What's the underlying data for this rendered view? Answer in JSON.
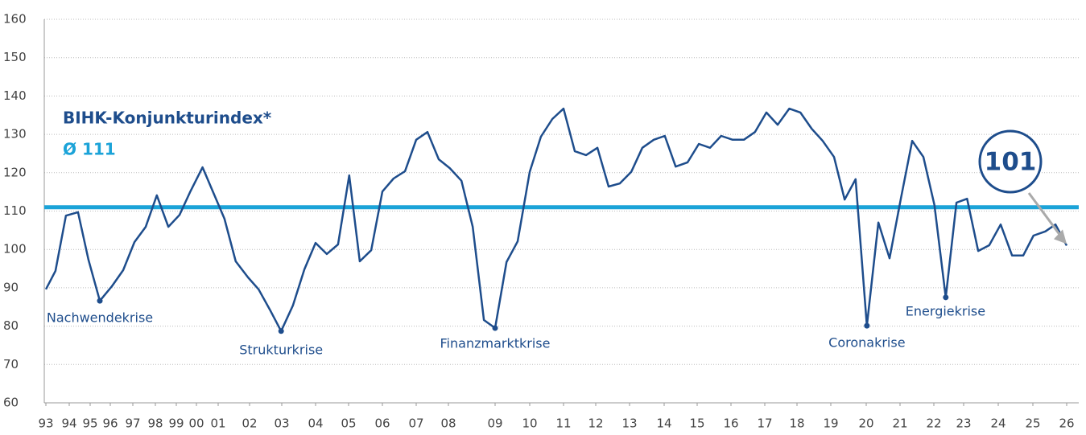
{
  "chart_data": {
    "type": "line",
    "title": "BIHK-Konjunkturindex*",
    "mean": {
      "value": 111,
      "label": "Ø 111",
      "color": "#1ba3d8"
    },
    "callout": {
      "value": 101,
      "label": "101"
    },
    "series": [
      {
        "name": "BIHK-Konjunkturindex*",
        "color": "#1e4d8c",
        "x": [
          1993.0,
          1993.41,
          1993.86,
          1994.42,
          1994.92,
          1995.48,
          1996.07,
          1996.57,
          1997.07,
          1997.57,
          1998.07,
          1998.62,
          1999.16,
          1999.68,
          2000.28,
          2000.74,
          2001.2,
          2001.56,
          2001.95,
          2002.28,
          2002.63,
          2002.98,
          2003.33,
          2003.67,
          2004.0,
          2004.34,
          2004.68,
          2005.02,
          2005.33,
          2005.67,
          2006.0,
          2006.33,
          2006.67,
          2007.0,
          2007.35,
          2007.7,
          2008.03,
          2008.28,
          2008.52,
          2008.76,
          2009.0,
          2009.33,
          2009.65,
          2010.0,
          2010.33,
          2010.67,
          2011.0,
          2011.35,
          2011.7,
          2012.05,
          2012.38,
          2012.71,
          2013.05,
          2013.37,
          2013.7,
          2014.02,
          2014.35,
          2014.71,
          2015.05,
          2015.38,
          2015.71,
          2016.05,
          2016.38,
          2016.71,
          2017.05,
          2017.4,
          2017.76,
          2018.1,
          2018.43,
          2018.76,
          2019.09,
          2019.39,
          2019.7,
          2020.02,
          2020.36,
          2020.69,
          2021.02,
          2021.36,
          2021.69,
          2022.02,
          2022.4,
          2022.76,
          2023.1,
          2023.42,
          2023.74,
          2024.07,
          2024.4,
          2024.72,
          2025.02,
          2025.37,
          2025.67,
          2026.0
        ],
        "values": [
          89.6,
          94.4,
          108.8,
          109.7,
          97.3,
          86.6,
          90.4,
          94.6,
          101.9,
          105.9,
          114.1,
          105.9,
          109.0,
          114.9,
          121.4,
          115.3,
          108.0,
          96.9,
          92.7,
          89.6,
          84.3,
          78.7,
          85.4,
          94.8,
          101.7,
          98.8,
          101.3,
          119.3,
          96.9,
          99.8,
          115.1,
          118.5,
          120.4,
          128.6,
          130.6,
          123.5,
          121.2,
          117.9,
          105.9,
          81.6,
          79.5,
          96.7,
          102.1,
          120.2,
          129.4,
          134.0,
          136.7,
          125.6,
          124.6,
          126.5,
          116.4,
          117.2,
          120.2,
          126.5,
          128.6,
          129.6,
          121.6,
          122.7,
          127.5,
          126.5,
          129.6,
          128.6,
          128.6,
          130.6,
          135.7,
          132.5,
          136.7,
          135.7,
          131.5,
          128.3,
          124.1,
          113.0,
          118.3,
          80.1,
          107.0,
          97.7,
          113.0,
          128.3,
          124.1,
          111.6,
          87.5,
          112.2,
          113.2,
          99.6,
          101.1,
          106.5,
          98.4,
          98.4,
          103.6,
          104.7,
          106.5,
          101
        ]
      }
    ],
    "annotations": [
      {
        "text": "Nachwendekrise",
        "x": 1995.48,
        "y": 86.6
      },
      {
        "text": "Strukturkrise",
        "x": 2002.98,
        "y": 78.7
      },
      {
        "text": "Finanzmarktkrise",
        "x": 2009.0,
        "y": 79.5
      },
      {
        "text": "Coronakrise",
        "x": 2020.02,
        "y": 80.1
      },
      {
        "text": "Energiekrise",
        "x": 2022.4,
        "y": 87.5
      }
    ],
    "ylim": [
      60,
      160
    ],
    "yticks": [
      60,
      70,
      80,
      90,
      100,
      110,
      120,
      130,
      140,
      150,
      160
    ],
    "xlim": [
      1993,
      2026
    ],
    "xticks": [
      {
        "value": 1993,
        "label": "93"
      },
      {
        "value": 1994,
        "label": "94"
      },
      {
        "value": 1995,
        "label": "95"
      },
      {
        "value": 1996,
        "label": "96"
      },
      {
        "value": 1997,
        "label": "97"
      },
      {
        "value": 1998,
        "label": "98"
      },
      {
        "value": 1999,
        "label": "99"
      },
      {
        "value": 2000,
        "label": "00"
      },
      {
        "value": 2001,
        "label": "01"
      },
      {
        "value": 2002,
        "label": "02"
      },
      {
        "value": 2003,
        "label": "03"
      },
      {
        "value": 2004,
        "label": "04"
      },
      {
        "value": 2005,
        "label": "05"
      },
      {
        "value": 2006,
        "label": "06"
      },
      {
        "value": 2007,
        "label": "07"
      },
      {
        "value": 2008,
        "label": "08"
      },
      {
        "value": 2009,
        "label": "09"
      },
      {
        "value": 2010,
        "label": "10"
      },
      {
        "value": 2011,
        "label": "11"
      },
      {
        "value": 2012,
        "label": "12"
      },
      {
        "value": 2013,
        "label": "13"
      },
      {
        "value": 2014,
        "label": "14"
      },
      {
        "value": 2015,
        "label": "15"
      },
      {
        "value": 2016,
        "label": "16"
      },
      {
        "value": 2017,
        "label": "17"
      },
      {
        "value": 2018,
        "label": "18"
      },
      {
        "value": 2019,
        "label": "19"
      },
      {
        "value": 2020,
        "label": "20"
      },
      {
        "value": 2021,
        "label": "21"
      },
      {
        "value": 2022,
        "label": "22"
      },
      {
        "value": 2023,
        "label": "23"
      },
      {
        "value": 2024,
        "label": "24"
      },
      {
        "value": 2025,
        "label": "25"
      },
      {
        "value": 2026,
        "label": "26"
      }
    ],
    "grid": true
  }
}
